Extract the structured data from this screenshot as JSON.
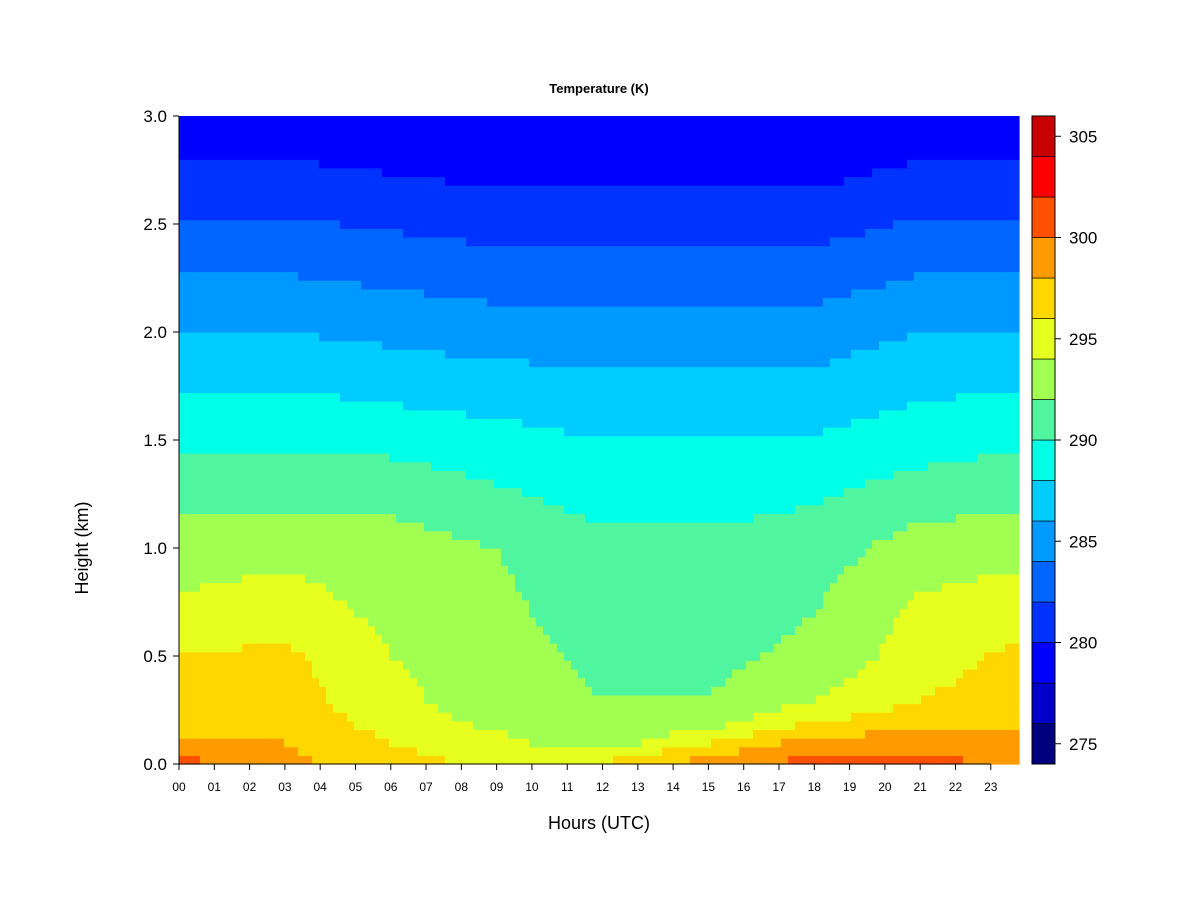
{
  "chart_data": {
    "type": "heatmap",
    "title": "Temperature (K)",
    "xlabel": "Hours (UTC)",
    "ylabel": "Height (km)",
    "xlim": [
      0,
      23.8
    ],
    "ylim": [
      0,
      3.0
    ],
    "x_ticks": [
      "00",
      "01",
      "02",
      "03",
      "04",
      "05",
      "06",
      "07",
      "08",
      "09",
      "10",
      "11",
      "12",
      "13",
      "14",
      "15",
      "16",
      "17",
      "18",
      "19",
      "20",
      "21",
      "22",
      "23"
    ],
    "y_ticks": [
      "0.0",
      "0.5",
      "1.0",
      "1.5",
      "2.0",
      "2.5",
      "3.0"
    ],
    "colorbar": {
      "range": [
        274,
        306
      ],
      "levels": [
        274,
        276,
        278,
        280,
        282,
        284,
        286,
        288,
        290,
        292,
        294,
        296,
        298,
        300,
        302,
        304,
        306
      ],
      "colors": [
        "#00007f",
        "#0000c8",
        "#0000ff",
        "#0033ff",
        "#0066ff",
        "#0099ff",
        "#00ccff",
        "#00ffe6",
        "#50f5a0",
        "#a0ff50",
        "#e6ff1e",
        "#ffd700",
        "#ff9b00",
        "#ff5000",
        "#ff0000",
        "#c80000",
        "#7f0000"
      ],
      "tick_labels": [
        "275",
        "280",
        "285",
        "290",
        "295",
        "300",
        "305"
      ]
    },
    "temperature_profiles": {
      "heights_km": [
        0.0,
        0.1,
        0.2,
        0.3,
        0.5,
        0.7,
        1.0,
        1.3,
        1.6,
        2.0,
        2.4,
        2.8,
        3.0
      ],
      "hours": [
        0,
        3,
        6,
        9,
        12,
        15,
        18,
        21,
        23.8
      ],
      "values": [
        [
          301.0,
          298.0,
          297.5,
          297.0,
          296.0,
          294.5,
          293.0,
          291.0,
          289.0,
          286.0,
          283.0,
          280.0,
          278.5
        ],
        [
          298.5,
          298.0,
          297.5,
          297.0,
          296.5,
          295.0,
          293.5,
          291.0,
          289.0,
          286.0,
          283.0,
          280.0,
          278.5
        ],
        [
          297.0,
          296.0,
          295.0,
          294.5,
          294.0,
          293.5,
          293.0,
          291.0,
          288.5,
          285.5,
          282.5,
          279.5,
          278.0
        ],
        [
          295.5,
          294.5,
          293.5,
          293.0,
          293.0,
          292.5,
          292.0,
          290.0,
          288.0,
          285.0,
          282.0,
          279.0,
          278.0
        ],
        [
          296.5,
          293.0,
          292.5,
          292.0,
          291.5,
          291.0,
          290.5,
          289.0,
          287.5,
          285.0,
          282.0,
          279.0,
          278.0
        ],
        [
          299.0,
          296.0,
          293.0,
          292.0,
          291.5,
          291.0,
          290.5,
          289.0,
          287.5,
          285.0,
          282.0,
          279.0,
          278.0
        ],
        [
          301.0,
          299.0,
          296.0,
          294.0,
          292.5,
          292.0,
          291.0,
          289.5,
          287.5,
          285.0,
          282.0,
          279.0,
          278.0
        ],
        [
          301.0,
          299.0,
          297.0,
          296.0,
          295.0,
          294.5,
          293.0,
          290.5,
          288.5,
          286.0,
          283.0,
          280.0,
          278.5
        ],
        [
          299.5,
          298.5,
          297.5,
          297.0,
          296.5,
          295.0,
          293.5,
          291.0,
          289.0,
          286.0,
          283.0,
          280.0,
          278.5
        ]
      ]
    }
  }
}
